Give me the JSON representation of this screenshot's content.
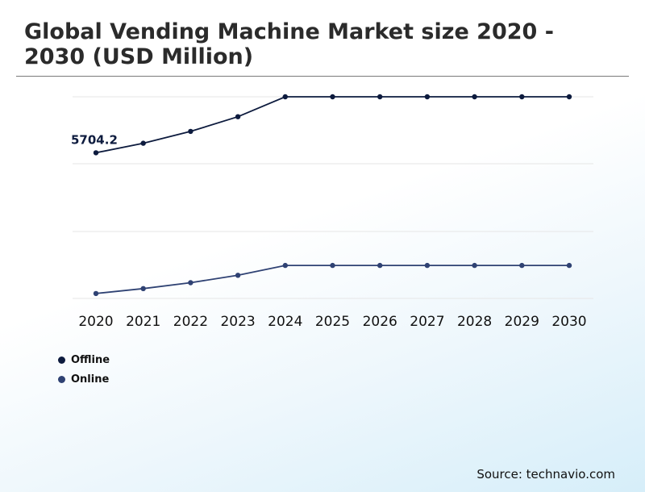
{
  "title": "Global Vending Machine Market size 2020 - 2030 (USD Million)",
  "source": "Source: technavio.com",
  "colors": {
    "offline": "#0d1b3e",
    "online": "#2f4273",
    "gridline": "#e6e6e6"
  },
  "chart_data": {
    "type": "line",
    "categories": [
      "2020",
      "2021",
      "2022",
      "2023",
      "2024",
      "2025",
      "2026",
      "2027",
      "2028",
      "2029",
      "2030"
    ],
    "ylim": [
      3000,
      8000
    ],
    "grid": true,
    "legend_placement": "bottom-left",
    "series": [
      {
        "name": "Offline",
        "values": [
          5704.2,
          5881.3,
          6100.4,
          6373.8,
          6743.4,
          6743.4,
          6743.4,
          6743.4,
          6743.4,
          6743.4,
          6743.4
        ]
      },
      {
        "name": "Online",
        "values": [
          3091.8,
          3183.3,
          3292.6,
          3429.0,
          3612.9,
          3612.9,
          3612.9,
          3612.9,
          3612.9,
          3612.9,
          3612.9
        ]
      }
    ],
    "annotations": [
      {
        "series": 0,
        "index": 0,
        "text": "5704.2"
      }
    ]
  }
}
